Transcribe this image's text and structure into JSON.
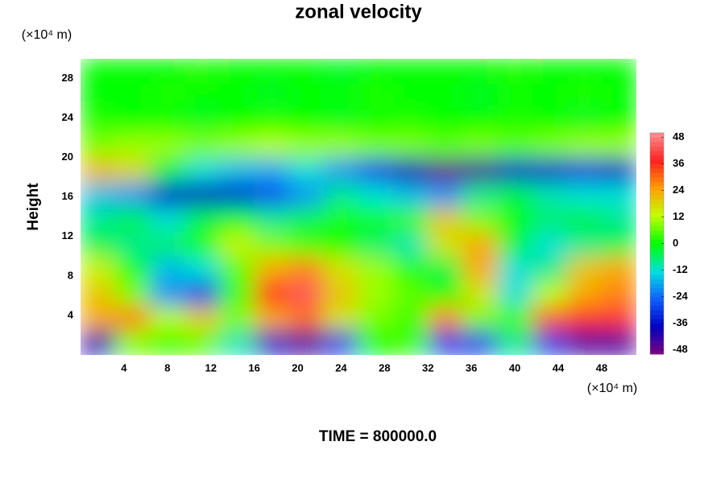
{
  "chart_data": {
    "type": "heatmap",
    "title": "zonal velocity",
    "x_unit_label": "(×10⁴ m)",
    "y_unit_label": "(×10⁴ m)",
    "ylabel": "Height",
    "footer": "TIME = 800000.0",
    "x": [
      1.6,
      4.8,
      8,
      11.2,
      14.4,
      17.6,
      20.8,
      24,
      27.2,
      30.4,
      33.6,
      36.8,
      40,
      43.2,
      46.4,
      49.6
    ],
    "y": [
      1.25,
      3.75,
      6.25,
      8.75,
      11.25,
      13.75,
      16.25,
      18.75,
      21.25,
      23.75,
      26.25,
      28.75
    ],
    "z": [
      [
        -40,
        8,
        4,
        6,
        -10,
        -36,
        -44,
        -30,
        0,
        4,
        -30,
        -30,
        -8,
        -30,
        -44,
        -44
      ],
      [
        24,
        28,
        12,
        20,
        8,
        24,
        30,
        16,
        8,
        4,
        28,
        8,
        4,
        32,
        36,
        40
      ],
      [
        20,
        8,
        -20,
        -30,
        4,
        36,
        44,
        20,
        10,
        6,
        0,
        16,
        -12,
        12,
        24,
        28
      ],
      [
        14,
        0,
        -16,
        -12,
        6,
        24,
        28,
        16,
        10,
        2,
        -4,
        24,
        -12,
        -8,
        20,
        24
      ],
      [
        -4,
        -8,
        -6,
        2,
        14,
        8,
        4,
        0,
        -6,
        -10,
        16,
        24,
        -4,
        -12,
        -8,
        -4
      ],
      [
        -8,
        -4,
        -12,
        -4,
        0,
        -8,
        -4,
        2,
        0,
        4,
        20,
        8,
        0,
        -6,
        -4,
        -8
      ],
      [
        -16,
        -20,
        -36,
        -38,
        -36,
        -28,
        -20,
        -8,
        -12,
        -16,
        -20,
        -8,
        -4,
        -10,
        -12,
        -12
      ],
      [
        22,
        18,
        -4,
        -12,
        -16,
        -18,
        -12,
        -20,
        -30,
        -40,
        -48,
        -44,
        -36,
        -36,
        -32,
        -36
      ],
      [
        8,
        10,
        10,
        8,
        10,
        12,
        10,
        10,
        8,
        8,
        6,
        8,
        6,
        8,
        10,
        10
      ],
      [
        2,
        0,
        0,
        -2,
        0,
        2,
        0,
        -2,
        0,
        2,
        0,
        0,
        2,
        0,
        -2,
        0
      ],
      [
        0,
        0,
        2,
        0,
        0,
        -2,
        0,
        0,
        2,
        0,
        0,
        -2,
        0,
        0,
        2,
        0
      ],
      [
        0,
        0,
        0,
        2,
        0,
        0,
        0,
        -2,
        0,
        0,
        0,
        0,
        2,
        0,
        0,
        0
      ]
    ],
    "xlim": [
      0,
      51.2
    ],
    "ylim": [
      0,
      30
    ],
    "xticks": [
      4,
      8,
      12,
      16,
      20,
      24,
      28,
      32,
      36,
      40,
      44,
      48
    ],
    "yticks": [
      4,
      8,
      12,
      16,
      20,
      24,
      28
    ],
    "clim": [
      -50,
      50
    ],
    "cticks": [
      -48,
      -36,
      -24,
      -12,
      0,
      12,
      24,
      36,
      48
    ],
    "colormap": [
      "#800080",
      "#0000c0",
      "#1060ff",
      "#00e0e0",
      "#00ff00",
      "#c0ff00",
      "#ffa000",
      "#ff2020",
      "#ff9090"
    ]
  }
}
